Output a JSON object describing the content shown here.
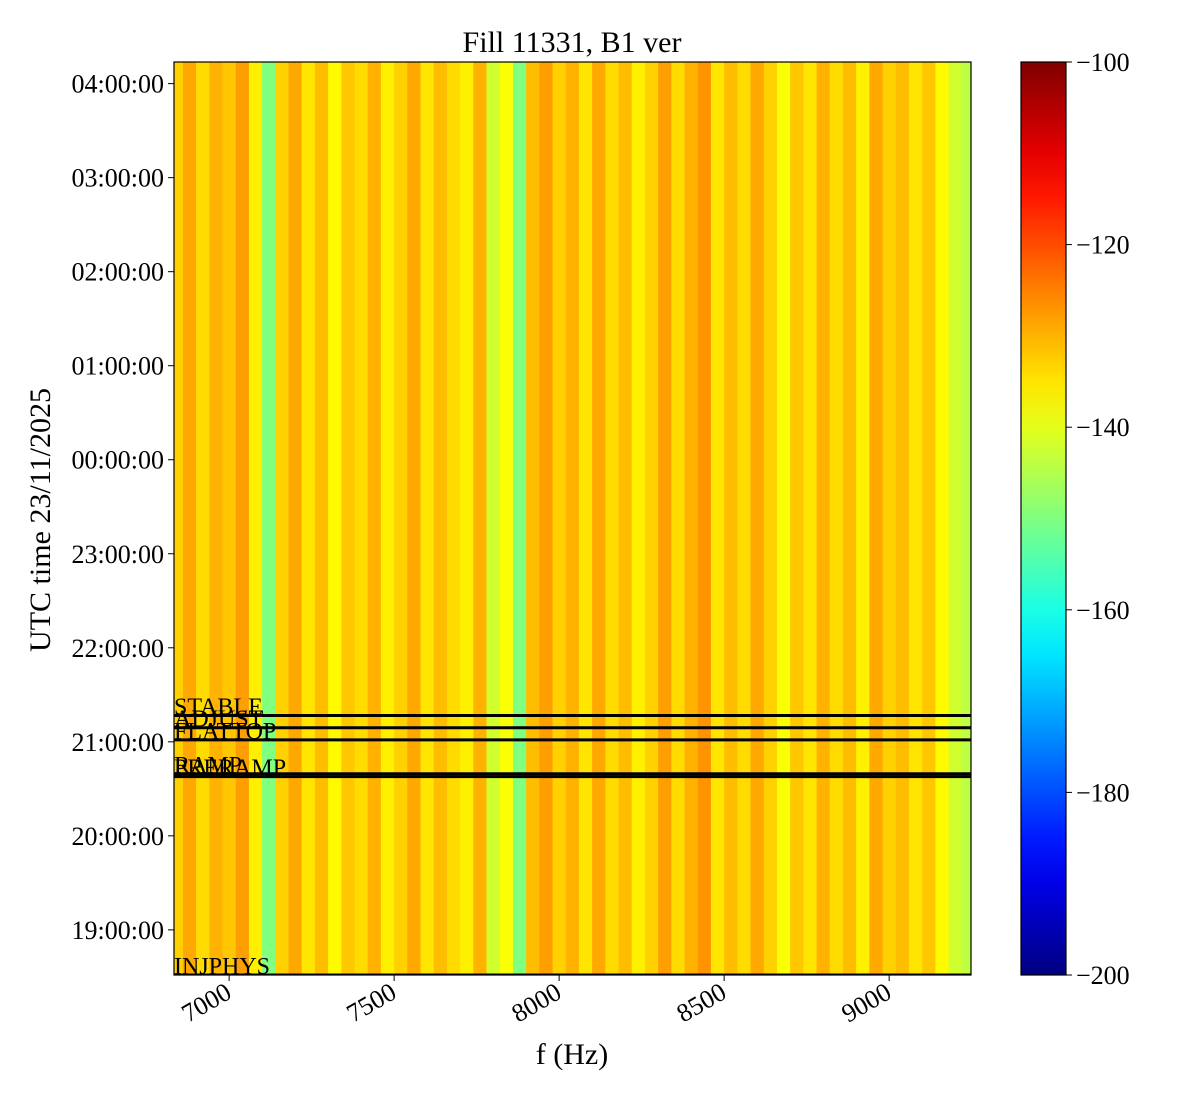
{
  "chart_data": {
    "type": "heatmap",
    "title": "Fill 11331, B1 ver",
    "x_label": "f (Hz)",
    "y_label": "UTC time 23/11/2025",
    "x": [
      6840,
      6880,
      6920,
      6960,
      7000,
      7040,
      7080,
      7120,
      7160,
      7200,
      7240,
      7280,
      7320,
      7360,
      7400,
      7440,
      7480,
      7520,
      7560,
      7600,
      7640,
      7680,
      7720,
      7760,
      7800,
      7840,
      7880,
      7920,
      7960,
      8000,
      8040,
      8080,
      8120,
      8160,
      8200,
      8240,
      8280,
      8320,
      8360,
      8400,
      8440,
      8480,
      8520,
      8560,
      8600,
      8640,
      8680,
      8720,
      8760,
      8800,
      8840,
      8880,
      8920,
      8960,
      9000,
      9040,
      9080,
      9120,
      9160,
      9200,
      9240
    ],
    "values": [
      -133,
      -129,
      -134,
      -130,
      -132,
      -128,
      -136,
      -150,
      -133,
      -129,
      -135,
      -131,
      -137,
      -132,
      -134,
      -130,
      -136,
      -133,
      -129,
      -135,
      -131,
      -134,
      -136,
      -130,
      -142,
      -138,
      -150,
      -131,
      -128,
      -133,
      -130,
      -135,
      -129,
      -134,
      -131,
      -136,
      -133,
      -128,
      -134,
      -130,
      -127,
      -135,
      -131,
      -134,
      -129,
      -133,
      -138,
      -132,
      -135,
      -130,
      -134,
      -131,
      -136,
      -129,
      -133,
      -131,
      -135,
      -132,
      -137,
      -142,
      -144
    ],
    "xlim": [
      6833,
      9248
    ],
    "xticks": [
      7000,
      7500,
      8000,
      8500,
      9000
    ],
    "ylim": [
      18.52,
      28.23
    ],
    "yticks": [
      {
        "value": 19,
        "label": "19:00:00"
      },
      {
        "value": 20,
        "label": "20:00:00"
      },
      {
        "value": 21,
        "label": "21:00:00"
      },
      {
        "value": 22,
        "label": "22:00:00"
      },
      {
        "value": 23,
        "label": "23:00:00"
      },
      {
        "value": 24,
        "label": "00:00:00"
      },
      {
        "value": 25,
        "label": "01:00:00"
      },
      {
        "value": 26,
        "label": "02:00:00"
      },
      {
        "value": 27,
        "label": "03:00:00"
      },
      {
        "value": 28,
        "label": "04:00:00"
      }
    ],
    "colormap": "jet",
    "clim": [
      -200,
      -100
    ],
    "cticks": [
      {
        "value": -200,
        "label": "−200"
      },
      {
        "value": -180,
        "label": "−180"
      },
      {
        "value": -160,
        "label": "−160"
      },
      {
        "value": -140,
        "label": "−140"
      },
      {
        "value": -120,
        "label": "−120"
      },
      {
        "value": -100,
        "label": "−100"
      }
    ],
    "events": [
      {
        "label": "STABLE",
        "time": 21.28
      },
      {
        "label": "ADJUST",
        "time": 21.15
      },
      {
        "label": "FLATTOP",
        "time": 21.02
      },
      {
        "label": "RAMP",
        "time": 20.66
      },
      {
        "label": "PRERAMP",
        "time": 20.63
      },
      {
        "label": "INJPHYS",
        "time": 18.52
      }
    ]
  }
}
